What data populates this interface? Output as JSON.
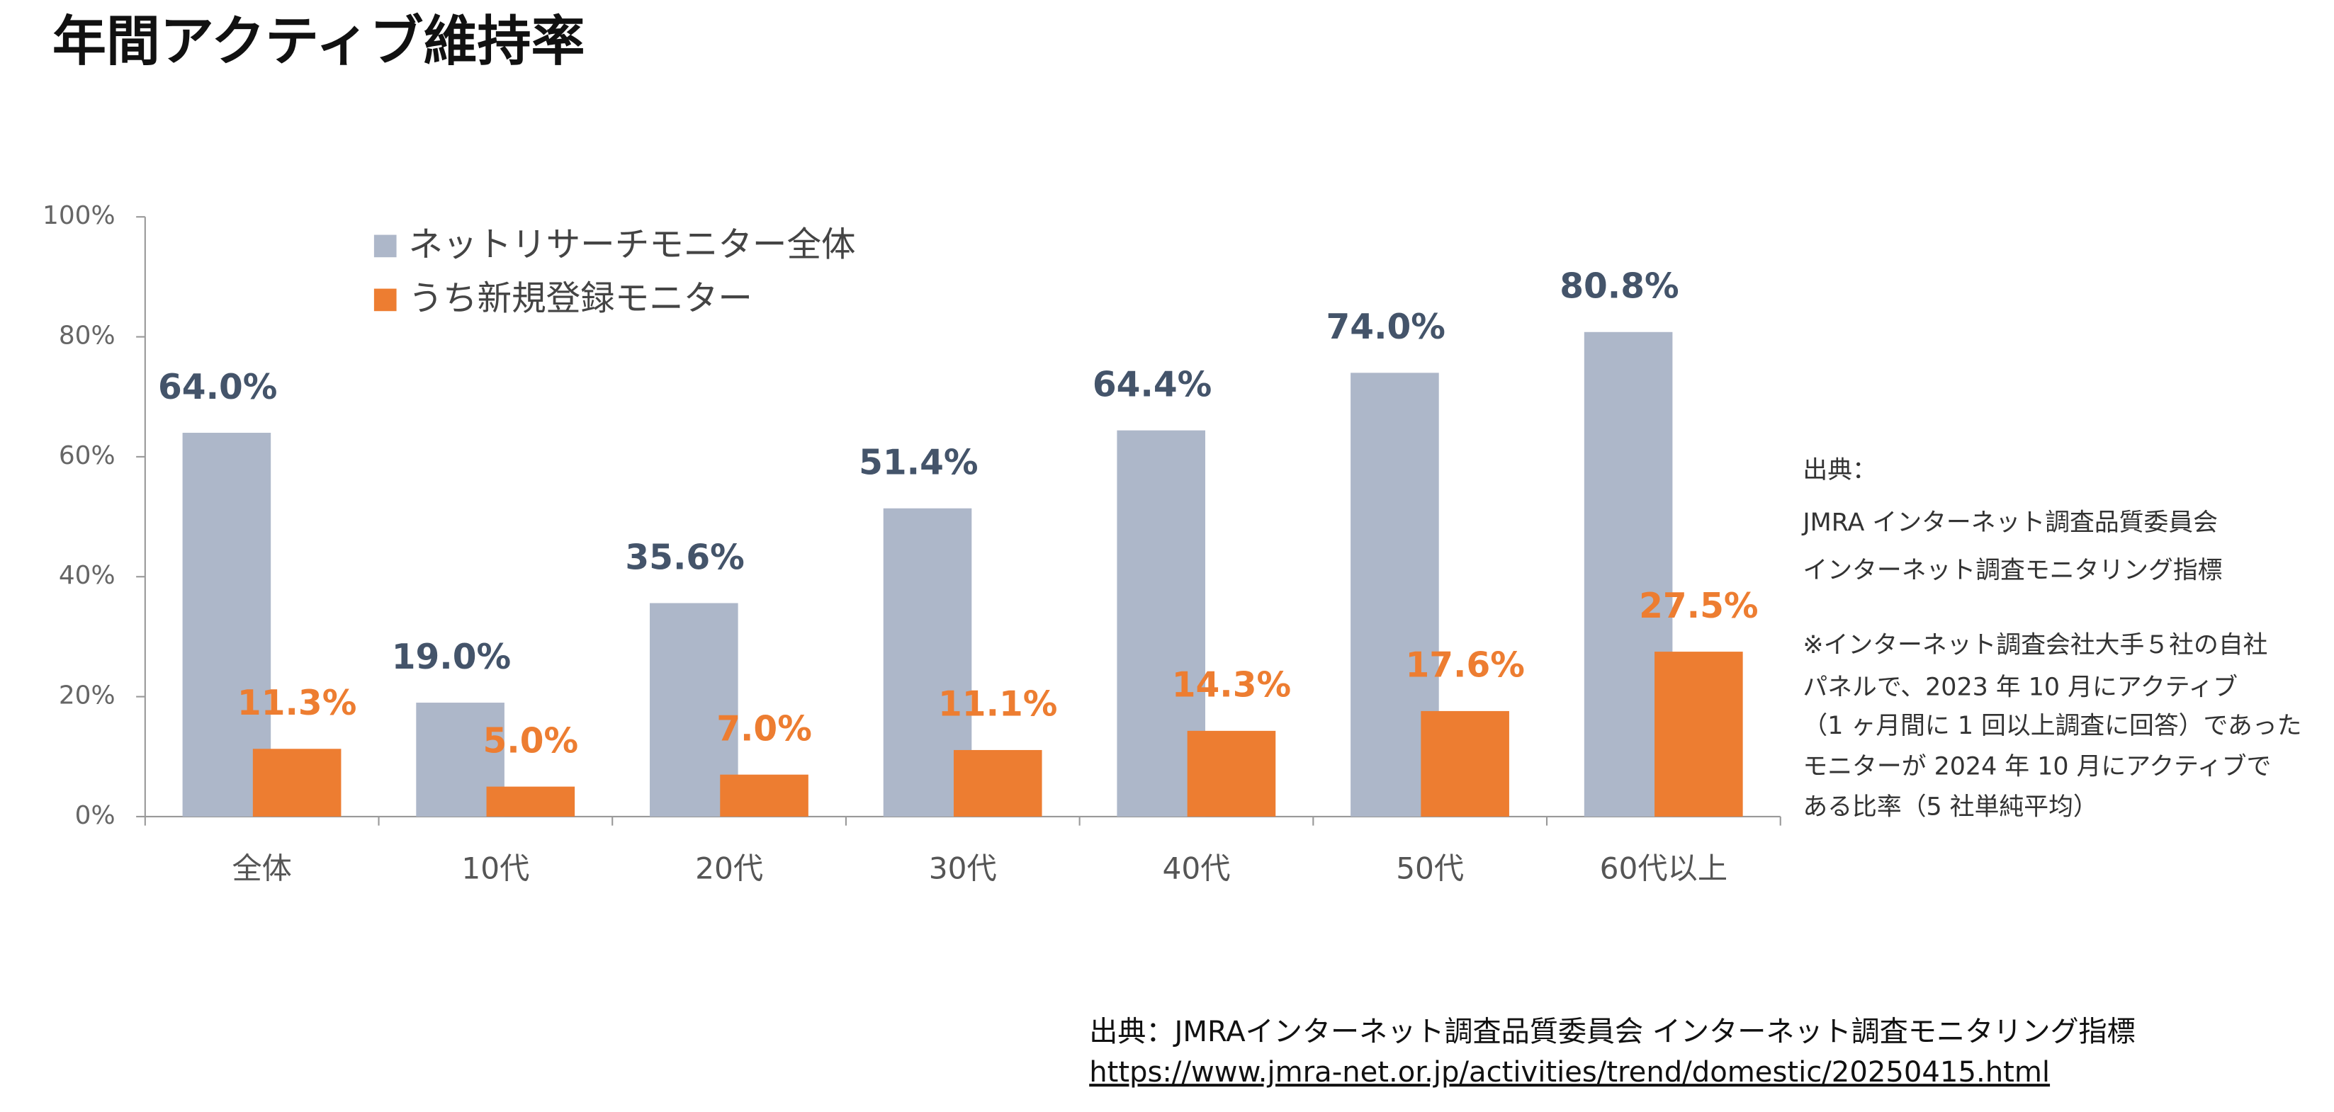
{
  "chart_data": {
    "type": "bar",
    "title": "年間アクティブ維持率",
    "categories": [
      "全体",
      "10代",
      "20代",
      "30代",
      "40代",
      "50代",
      "60代以上"
    ],
    "series": [
      {
        "name": "ネットリサーチモニター全体",
        "color": "#adb7c9",
        "label_color": "#44546a",
        "values": [
          64.0,
          19.0,
          35.6,
          51.4,
          64.4,
          74.0,
          80.8
        ],
        "value_labels": [
          "64.0%",
          "19.0%",
          "35.6%",
          "51.4%",
          "64.4%",
          "74.0%",
          "80.8%"
        ]
      },
      {
        "name": "うち新規登録モニター",
        "color": "#ed7d31",
        "label_color": "#ed7d31",
        "values": [
          11.3,
          5.0,
          7.0,
          11.1,
          14.3,
          17.6,
          27.5
        ],
        "value_labels": [
          "11.3%",
          "5.0%",
          "7.0%",
          "11.1%",
          "14.3%",
          "17.6%",
          "27.5%"
        ]
      }
    ],
    "ylim": [
      0,
      100
    ],
    "yticks": [
      {
        "value": 0,
        "label": "0%"
      },
      {
        "value": 20,
        "label": "20%"
      },
      {
        "value": 40,
        "label": "40%"
      },
      {
        "value": 60,
        "label": "60%"
      },
      {
        "value": 80,
        "label": "80%"
      },
      {
        "value": 100,
        "label": "100%"
      }
    ],
    "grid": false,
    "note": [
      "出典：",
      "JMRA インターネット調査品質委員会",
      "インターネット調査モニタリング指標",
      "※インターネット調査会社大手５社の自社",
      "パネルで、2023 年 10 月にアクティブ",
      "（1 ヶ月間に 1 回以上調査に回答）であった",
      "モニターが 2024 年 10 月にアクティブで",
      "ある比率（5 社単純平均）"
    ]
  },
  "footer": {
    "source": "出典：JMRAインターネット調査品質委員会 インターネット調査モニタリング指標",
    "url": "https://www.jmra-net.or.jp/activities/trend/domestic/20250415.html"
  }
}
